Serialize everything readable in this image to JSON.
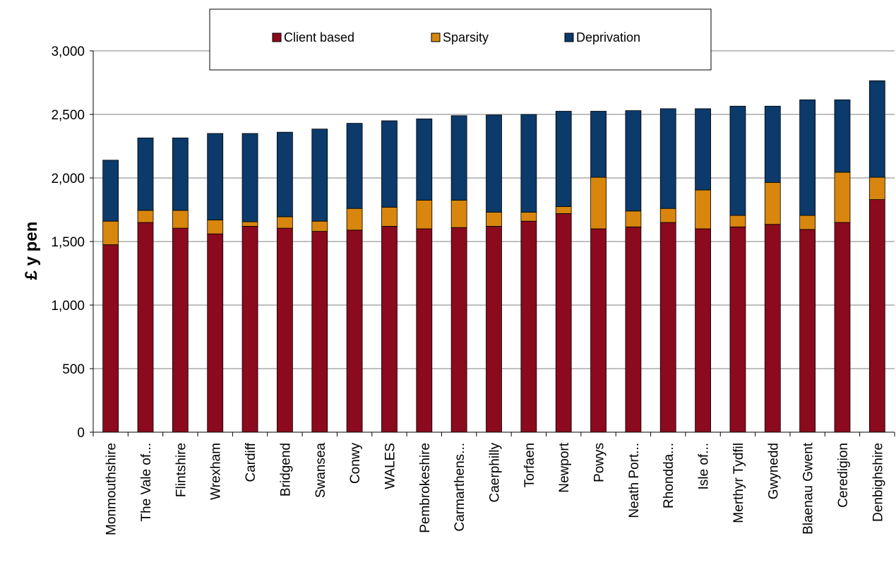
{
  "chart_data": {
    "type": "bar",
    "stacked": true,
    "title": "",
    "xlabel": "",
    "ylabel": "£ y pen",
    "ylim": [
      0,
      3000
    ],
    "yticks": [
      0,
      500,
      1000,
      1500,
      2000,
      2500,
      3000
    ],
    "ytick_labels": [
      "0",
      "500",
      "1,000",
      "1,500",
      "2,000",
      "2,500",
      "3,000"
    ],
    "grid": "horizontal",
    "legend_position": "top-center",
    "categories": [
      "Monmouthshire",
      "The Vale of...",
      "Flintshire",
      "Wrexham",
      "Cardiff",
      "Bridgend",
      "Swansea",
      "Conwy",
      "WALES",
      "Pembrokeshire",
      "Carmarthens...",
      "Caerphilly",
      "Torfaen",
      "Newport",
      "Powys",
      "Neath Port...",
      "Rhondda...",
      "Isle of...",
      "Merthyr Tydfil",
      "Gwynedd",
      "Blaenau Gwent",
      "Ceredigion",
      "Denbighshire"
    ],
    "series": [
      {
        "name": "Client based",
        "color": "#8b0a1e",
        "values": [
          1475,
          1650,
          1605,
          1560,
          1620,
          1605,
          1580,
          1590,
          1620,
          1600,
          1610,
          1620,
          1660,
          1720,
          1600,
          1615,
          1650,
          1600,
          1615,
          1635,
          1595,
          1650,
          1830
        ]
      },
      {
        "name": "Sparsity",
        "color": "#d8860e",
        "values": [
          185,
          95,
          140,
          110,
          35,
          90,
          80,
          170,
          150,
          225,
          215,
          110,
          70,
          55,
          405,
          125,
          110,
          305,
          90,
          330,
          110,
          395,
          175
        ]
      },
      {
        "name": "Deprivation",
        "color": "#0b3a6b",
        "values": [
          480,
          570,
          570,
          680,
          695,
          665,
          725,
          670,
          680,
          640,
          665,
          765,
          770,
          750,
          520,
          790,
          785,
          640,
          860,
          600,
          910,
          570,
          760
        ]
      }
    ]
  }
}
